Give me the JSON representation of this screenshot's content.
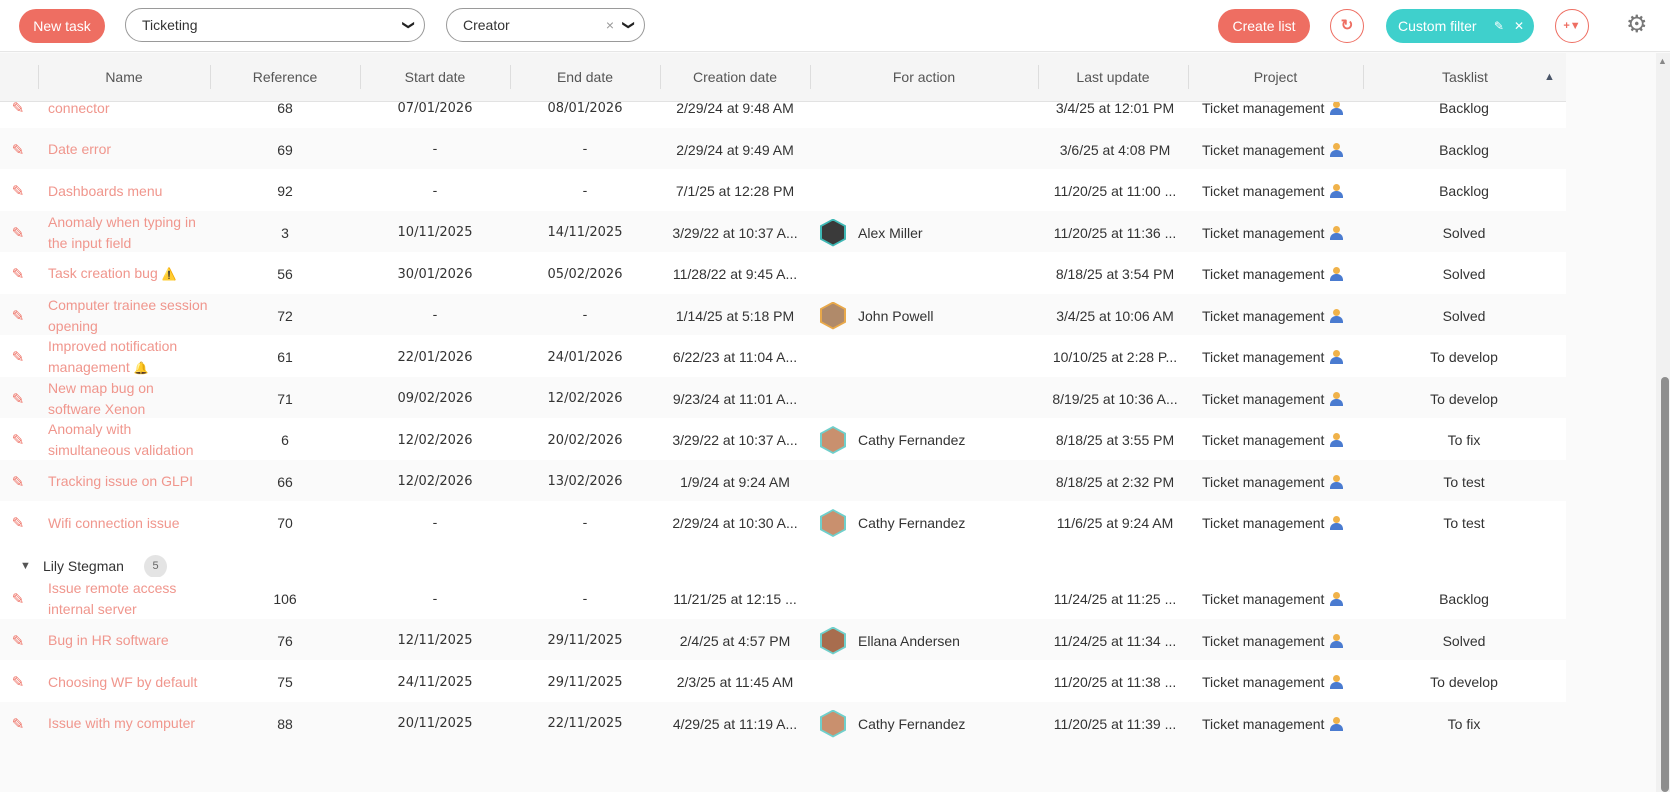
{
  "toolbar": {
    "new_task_label": "New task",
    "project_select_value": "Ticketing",
    "group_by_select_value": "Creator",
    "create_list_label": "Create list",
    "custom_filter_label": "Custom filter",
    "refresh_icon": "↻",
    "add_filter_icon": "+▼",
    "gear_icon": "⚙",
    "chevron_icon": "❯",
    "clear_icon": "×",
    "edit_icon": "✎",
    "close_icon": "✕"
  },
  "columns": {
    "name": "Name",
    "reference": "Reference",
    "start_date": "Start date",
    "end_date": "End date",
    "creation_date": "Creation date",
    "for_action": "For action",
    "last_update": "Last update",
    "project": "Project",
    "tasklist": "Tasklist",
    "sort_indicator": "▲"
  },
  "accent_colors": {
    "primary_red": "#ee6e62",
    "teal": "#3fd0cc",
    "task_name": "#f0968d"
  },
  "group1_rows": [
    {
      "name": "...ing connector",
      "name_display": "connector",
      "ref": "68",
      "start": "07/01/2026",
      "end": "08/01/2026",
      "created": "2/29/24 at 9:48 AM",
      "action": "",
      "updated": "3/4/25 at 12:01 PM",
      "project": "Ticket management",
      "tasklist": "Backlog"
    },
    {
      "name": "Date error",
      "name_display": "Date error",
      "ref": "69",
      "start": "-",
      "end": "-",
      "created": "2/29/24 at 9:49 AM",
      "action": "",
      "updated": "3/6/25 at 4:08 PM",
      "project": "Ticket management",
      "tasklist": "Backlog"
    },
    {
      "name": "Dashboards menu",
      "name_display": "Dashboards menu",
      "ref": "92",
      "start": "-",
      "end": "-",
      "created": "7/1/25 at 12:28 PM",
      "action": "",
      "updated": "11/20/25 at 11:00 ...",
      "project": "Ticket management",
      "tasklist": "Backlog"
    },
    {
      "name": "Anomaly when typing in the input field",
      "name_display": "Anomaly when typing in the input field",
      "ref": "3",
      "start": "10/11/2025",
      "end": "14/11/2025",
      "created": "3/29/22 at 10:37 A...",
      "action": "Alex Miller",
      "updated": "11/20/25 at 11:36 ...",
      "project": "Ticket management",
      "tasklist": "Solved"
    },
    {
      "name": "Task creation bug",
      "name_display": "Task creation bug",
      "emoji": "⚠️",
      "ref": "56",
      "start": "30/01/2026",
      "end": "05/02/2026",
      "created": "11/28/22 at 9:45 A...",
      "action": "",
      "updated": "8/18/25 at 3:54 PM",
      "project": "Ticket management",
      "tasklist": "Solved"
    },
    {
      "name": "Computer trainee session opening",
      "name_display": "Computer trainee session opening",
      "ref": "72",
      "start": "-",
      "end": "-",
      "created": "1/14/25 at 5:18 PM",
      "action": "John Powell",
      "updated": "3/4/25 at 10:06 AM",
      "project": "Ticket management",
      "tasklist": "Solved"
    },
    {
      "name": "Improved notification management",
      "name_display": "Improved notification management",
      "emoji": "🔔",
      "ref": "61",
      "start": "22/01/2026",
      "end": "24/01/2026",
      "created": "6/22/23 at 11:04 A...",
      "action": "",
      "updated": "10/10/25 at 2:28 P...",
      "project": "Ticket management",
      "tasklist": "To develop"
    },
    {
      "name": "New map bug on software Xenon",
      "name_display": "New map bug on software Xenon",
      "ref": "71",
      "start": "09/02/2026",
      "end": "12/02/2026",
      "created": "9/23/24 at 11:01 A...",
      "action": "",
      "updated": "8/19/25 at 10:36 A...",
      "project": "Ticket management",
      "tasklist": "To develop"
    },
    {
      "name": "Anomaly with simultaneous validation",
      "name_display": "Anomaly with simultaneous validation",
      "ref": "6",
      "start": "12/02/2026",
      "end": "20/02/2026",
      "created": "3/29/22 at 10:37 A...",
      "action": "Cathy Fernandez",
      "updated": "8/18/25 at 3:55 PM",
      "project": "Ticket management",
      "tasklist": "To fix"
    },
    {
      "name": "Tracking issue on GLPI",
      "name_display": "Tracking issue on GLPI",
      "ref": "66",
      "start": "12/02/2026",
      "end": "13/02/2026",
      "created": "1/9/24 at 9:24 AM",
      "action": "",
      "updated": "8/18/25 at 2:32 PM",
      "project": "Ticket management",
      "tasklist": "To test"
    },
    {
      "name": "Wifi connection issue",
      "name_display": "Wifi connection issue",
      "ref": "70",
      "start": "-",
      "end": "-",
      "created": "2/29/24 at 10:30 A...",
      "action": "Cathy Fernandez",
      "updated": "11/6/25 at 9:24 AM",
      "project": "Ticket management",
      "tasklist": "To test"
    }
  ],
  "group2": {
    "toggle_icon": "▼",
    "name": "Lily Stegman",
    "count": "5"
  },
  "group2_rows": [
    {
      "name_display": "Issue remote access internal server",
      "ref": "106",
      "start": "-",
      "end": "-",
      "created": "11/21/25 at 12:15 ...",
      "action": "",
      "updated": "11/24/25 at 11:25 ...",
      "project": "Ticket management",
      "tasklist": "Backlog"
    },
    {
      "name_display": "Bug in HR software",
      "ref": "76",
      "start": "12/11/2025",
      "end": "29/11/2025",
      "created": "2/4/25 at 4:57 PM",
      "action": "Ellana Andersen",
      "updated": "11/24/25 at 11:34 ...",
      "project": "Ticket management",
      "tasklist": "Solved"
    },
    {
      "name_display": "Choosing WF by default",
      "ref": "75",
      "start": "24/11/2025",
      "end": "29/11/2025",
      "created": "2/3/25 at 11:45 AM",
      "action": "",
      "updated": "11/20/25 at 11:38 ...",
      "project": "Ticket management",
      "tasklist": "To develop"
    },
    {
      "name_display": "Issue with my computer",
      "ref": "88",
      "start": "20/11/2025",
      "end": "22/11/2025",
      "created": "4/29/25 at 11:19 A...",
      "action": "Cathy Fernandez",
      "updated": "11/20/25 at 11:39 ...",
      "project": "Ticket management",
      "tasklist": "To fix"
    }
  ]
}
